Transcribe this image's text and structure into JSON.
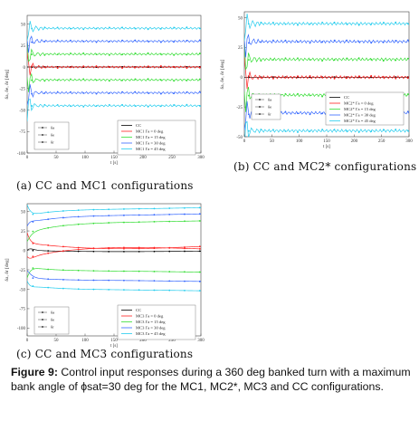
{
  "figure": {
    "caption_label": "Figure 9:",
    "caption_text": "Control input responses during a 360 deg banked turn with a maximum bank angle of ϕsat=30 deg for the MC1, MC2*, MC3 and CC configurations.",
    "subcaptions": [
      {
        "prefix": "(a)",
        "text": "CC and MC1 configurations"
      },
      {
        "prefix": "(b)",
        "text": "CC and MC2* configurations"
      },
      {
        "prefix": "(c)",
        "text": "CC and MC3 configurations"
      }
    ]
  },
  "colors": {
    "CC": "#000000",
    "k0": "#ff2020",
    "k15": "#33dd33",
    "k30": "#3366ff",
    "k45": "#22ccee"
  },
  "chart_data": [
    {
      "type": "line",
      "panel": "a",
      "xlabel": "t [s]",
      "ylabel": "δa, δe, δr [deg]",
      "xlim": [
        0,
        300
      ],
      "ylim": [
        -100,
        60
      ],
      "x_ticks": [
        0,
        50,
        100,
        150,
        200,
        250,
        300
      ],
      "y_ticks": [
        -100,
        -75,
        -50,
        -25,
        0,
        25,
        50
      ],
      "grid": false,
      "legend_left": {
        "position": "bottom-left",
        "entries": [
          "δa",
          "δe",
          "δr"
        ]
      },
      "legend_right": {
        "position": "bottom-right",
        "entries": [
          "CC",
          "MC1 Γa = 0 deg",
          "MC1 Γa = 15 deg",
          "MC1 Γa = 30 deg",
          "MC1 Γa = 45 deg"
        ]
      },
      "series": [
        {
          "name": "CC",
          "color_key": "CC",
          "levels": [
            0
          ]
        },
        {
          "name": "MC1 Γa = 0 deg",
          "color_key": "k0",
          "levels": [
            0
          ]
        },
        {
          "name": "MC1 Γa = 15 deg",
          "color_key": "k15",
          "levels": [
            15,
            -15
          ]
        },
        {
          "name": "MC1 Γa = 30 deg",
          "color_key": "k30",
          "levels": [
            30,
            -30
          ]
        },
        {
          "name": "MC1 Γa = 45 deg",
          "color_key": "k45",
          "levels": [
            45,
            -45
          ]
        }
      ]
    },
    {
      "type": "line",
      "panel": "b",
      "xlabel": "t [s]",
      "ylabel": "δa, δe, δr [deg]",
      "xlim": [
        0,
        300
      ],
      "ylim": [
        -50,
        55
      ],
      "x_ticks": [
        0,
        50,
        100,
        150,
        200,
        250,
        300
      ],
      "y_ticks": [
        -50,
        -25,
        0,
        25,
        50
      ],
      "grid": false,
      "legend_left": {
        "position": "bottom-left",
        "entries": [
          "δa",
          "δe",
          "δr"
        ]
      },
      "legend_right": {
        "position": "bottom-right",
        "entries": [
          "CC",
          "MC2* Γa = 0 deg",
          "MC2* Γa = 15 deg",
          "MC2* Γa = 30 deg",
          "MC2* Γa = 45 deg"
        ]
      },
      "series": [
        {
          "name": "CC",
          "color_key": "CC",
          "levels": [
            0
          ]
        },
        {
          "name": "MC2* Γa = 0 deg",
          "color_key": "k0",
          "levels": [
            0
          ]
        },
        {
          "name": "MC2* Γa = 15 deg",
          "color_key": "k15",
          "levels": [
            15,
            -15
          ]
        },
        {
          "name": "MC2* Γa = 30 deg",
          "color_key": "k30",
          "levels": [
            30,
            -30
          ]
        },
        {
          "name": "MC2* Γa = 45 deg",
          "color_key": "k45",
          "levels": [
            45,
            -45
          ]
        }
      ]
    },
    {
      "type": "line",
      "panel": "c",
      "xlabel": "t [s]",
      "ylabel": "δa, δr [deg]",
      "xlim": [
        0,
        300
      ],
      "ylim": [
        -110,
        60
      ],
      "x_ticks": [
        0,
        50,
        100,
        150,
        200,
        250,
        300
      ],
      "y_ticks": [
        -100,
        -75,
        -50,
        -25,
        0,
        25,
        50
      ],
      "grid": false,
      "legend_left": {
        "position": "bottom-left",
        "entries": [
          "δa",
          "δe",
          "δr"
        ]
      },
      "legend_right": {
        "position": "bottom-right",
        "entries": [
          "CC",
          "MC3 Γa = 0 deg",
          "MC3 Γa = 15 deg",
          "MC3 Γa = 30 deg",
          "MC3 Γa = 45 deg"
        ]
      },
      "series": [
        {
          "name": "CC",
          "color_key": "CC",
          "curves": [
            [
              0,
              -2,
              -1
            ]
          ]
        },
        {
          "name": "MC3 Γa = 0 deg",
          "color_key": "k0",
          "curves": [
            [
              10,
              0,
              5
            ],
            [
              -10,
              5,
              2
            ]
          ]
        },
        {
          "name": "MC3 Γa = 15 deg",
          "color_key": "k15",
          "curves": [
            [
              22,
              35,
              38
            ],
            [
              -22,
              -26,
              -28
            ]
          ]
        },
        {
          "name": "MC3 Γa = 30 deg",
          "color_key": "k30",
          "curves": [
            [
              35,
              44,
              47
            ],
            [
              -35,
              -38,
              -40
            ]
          ]
        },
        {
          "name": "MC3 Γa = 45 deg",
          "color_key": "k45",
          "curves": [
            [
              45,
              52,
              55
            ],
            [
              -45,
              -50,
              -52
            ]
          ]
        }
      ]
    }
  ]
}
